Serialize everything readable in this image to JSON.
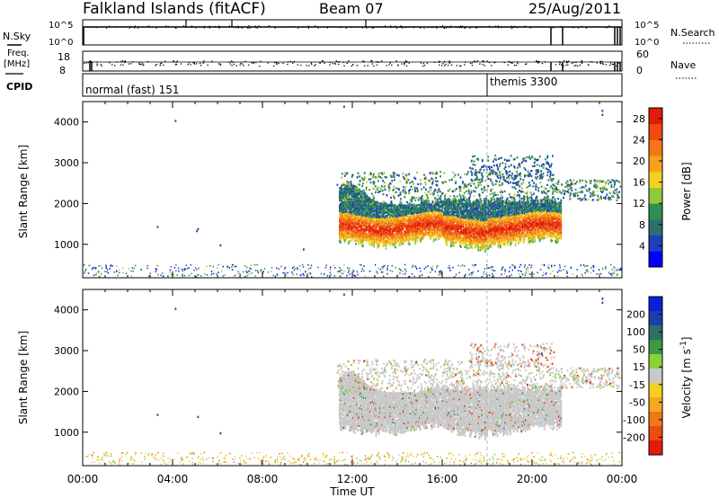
{
  "header": {
    "station": "Falkland Islands (fitACF)",
    "beam": "Beam 07",
    "date": "25/Aug/2011"
  },
  "left_labels": {
    "nsky": "N.Sky",
    "freq_top": "Freq.",
    "freq_unit": "[MHz]",
    "cpid": "CPID"
  },
  "right_labels": {
    "nsearch": "N.Search",
    "nave": "Nave"
  },
  "cpid_modes": [
    {
      "label": "normal (fast) 151",
      "start_hour": 0
    },
    {
      "label": "themis 3300",
      "start_hour": 18.0
    }
  ],
  "strip_ticks": {
    "noise_left": [
      "10^5",
      "10^0"
    ],
    "noise_right": [
      "10^5",
      "10^0"
    ],
    "freq_left": [
      "18",
      "8"
    ],
    "nave_right": [
      "60",
      "0"
    ]
  },
  "colors": {
    "power_scale": [
      "#0000ff",
      "#1a3fbf",
      "#2e6e6e",
      "#2f8f4f",
      "#8fc83a",
      "#f2d020",
      "#f6a21f",
      "#f07818",
      "#ee4a12",
      "#e41a0a"
    ],
    "velocity_scale": [
      "#e41a0a",
      "#ee4a12",
      "#f07818",
      "#f7a722",
      "#f2d020",
      "#c8c8c8",
      "#8ad13a",
      "#3a9a44",
      "#2d6f6a",
      "#1b3fa8",
      "#0a20d8"
    ],
    "gray": "#c8c8c8"
  },
  "chart_data": [
    {
      "type": "heatmap",
      "name_hint": "power panel",
      "ylabel": "Slant Range [km]",
      "xlabel": "Time UT",
      "x_ticks": [
        "00:00",
        "04:00",
        "08:00",
        "12:00",
        "16:00",
        "20:00",
        "00:00"
      ],
      "x_range_hours": [
        0,
        24
      ],
      "y_ticks": [
        1000,
        2000,
        3000,
        4000
      ],
      "y_range_km": [
        180,
        4500
      ],
      "colorbar": {
        "label": "Power [dB]",
        "ticks": [
          4,
          8,
          12,
          16,
          20,
          24,
          28
        ],
        "range": [
          0,
          30
        ]
      },
      "dashed_marker_hour": 18.0
    },
    {
      "type": "heatmap",
      "name_hint": "velocity panel",
      "ylabel": "Slant Range [km]",
      "xlabel": "Time UT",
      "x_ticks": [
        "00:00",
        "04:00",
        "08:00",
        "12:00",
        "16:00",
        "20:00",
        "00:00"
      ],
      "x_range_hours": [
        0,
        24
      ],
      "y_ticks": [
        1000,
        2000,
        3000,
        4000
      ],
      "y_range_km": [
        180,
        4500
      ],
      "colorbar": {
        "label": "Velocity [m s^-1]",
        "ticks": [
          200,
          100,
          50,
          15,
          -15,
          -50,
          -100,
          -200
        ]
      },
      "dashed_marker_hour": 18.0
    }
  ],
  "footer": {
    "xaxis_label": "Time UT"
  }
}
